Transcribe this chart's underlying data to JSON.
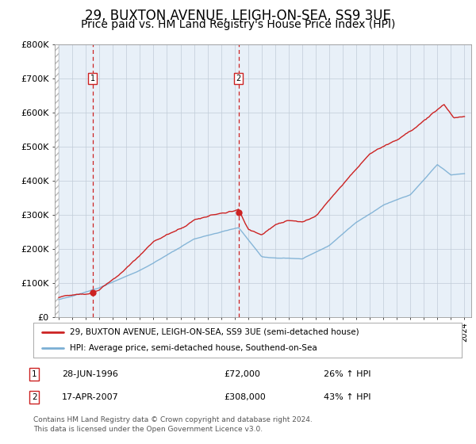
{
  "title": "29, BUXTON AVENUE, LEIGH-ON-SEA, SS9 3UE",
  "subtitle": "Price paid vs. HM Land Registry's House Price Index (HPI)",
  "ylim": [
    0,
    800000
  ],
  "yticks": [
    0,
    100000,
    200000,
    300000,
    400000,
    500000,
    600000,
    700000,
    800000
  ],
  "ytick_labels": [
    "£0",
    "£100K",
    "£200K",
    "£300K",
    "£400K",
    "£500K",
    "£600K",
    "£700K",
    "£800K"
  ],
  "xlim_start": 1993.7,
  "xlim_end": 2024.5,
  "sale1_date": 1996.49,
  "sale1_price": 72000,
  "sale2_date": 2007.29,
  "sale2_price": 308000,
  "red_color": "#cc2222",
  "blue_color": "#7bafd4",
  "bg_color": "#e8f0f8",
  "grid_color": "#c0ccd8",
  "legend_label_red": "29, BUXTON AVENUE, LEIGH-ON-SEA, SS9 3UE (semi-detached house)",
  "legend_label_blue": "HPI: Average price, semi-detached house, Southend-on-Sea",
  "table_rows": [
    {
      "num": "1",
      "date": "28-JUN-1996",
      "price": "£72,000",
      "hpi": "26% ↑ HPI"
    },
    {
      "num": "2",
      "date": "17-APR-2007",
      "price": "£308,000",
      "hpi": "43% ↑ HPI"
    }
  ],
  "footnote": "Contains HM Land Registry data © Crown copyright and database right 2024.\nThis data is licensed under the Open Government Licence v3.0.",
  "title_fontsize": 12,
  "subtitle_fontsize": 10
}
